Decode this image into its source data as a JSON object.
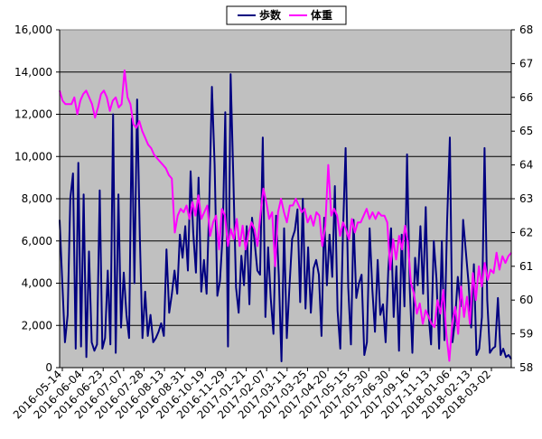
{
  "chart_data": {
    "type": "line",
    "legend": {
      "placement": "top-center",
      "entries": [
        {
          "label": "歩数",
          "color": "#000080"
        },
        {
          "label": "体重",
          "color": "#ff00ff"
        }
      ]
    },
    "plot_background": "#c0c0c0",
    "grid": true,
    "x": {
      "ticks": [
        "2016-05-14",
        "2016-06-04",
        "2016-06-23",
        "2016-07-07",
        "2016-07-28",
        "2016-08-13",
        "2016-08-31",
        "2016-10-19",
        "2016-11-29",
        "2017-01-21",
        "2017-02-07",
        "2017-03-11",
        "2017-03-25",
        "2017-04-20",
        "2017-05-15",
        "2017-05-30",
        "2017-06-30",
        "2017-09-16",
        "2017-11-13",
        "2018-01-06",
        "2018-02-13",
        "2018-03-02"
      ]
    },
    "y_left": {
      "ylim": [
        0,
        16000
      ],
      "ticks": [
        "0",
        "2,000",
        "4,000",
        "6,000",
        "8,000",
        "10,000",
        "12,000",
        "14,000",
        "16,000"
      ]
    },
    "y_right": {
      "ylim": [
        58,
        68
      ],
      "ticks": [
        "58",
        "59",
        "60",
        "61",
        "62",
        "63",
        "64",
        "65",
        "66",
        "67",
        "68"
      ]
    },
    "series": [
      {
        "name": "歩数",
        "axis": "left",
        "color": "#000080",
        "values": [
          7000,
          4000,
          1200,
          2500,
          8000,
          9200,
          900,
          9700,
          1000,
          8200,
          500,
          5500,
          1200,
          800,
          1100,
          8400,
          900,
          1400,
          4600,
          1100,
          12000,
          700,
          8200,
          1900,
          4500,
          2500,
          1400,
          11800,
          4000,
          12700,
          6200,
          1400,
          3600,
          1500,
          2500,
          1200,
          1400,
          1700,
          2100,
          1500,
          5600,
          2600,
          3500,
          4600,
          3500,
          6300,
          5200,
          6700,
          4600,
          9300,
          6400,
          4500,
          9000,
          3600,
          5100,
          3500,
          7800,
          13300,
          9600,
          3400,
          4100,
          6300,
          12100,
          1000,
          13900,
          9000,
          3800,
          2600,
          5300,
          3900,
          6700,
          3000,
          7100,
          5900,
          4600,
          4400,
          10900,
          2400,
          5700,
          3300,
          1600,
          7200,
          4400,
          300,
          6600,
          1400,
          3800,
          6100,
          6500,
          7500,
          3100,
          8000,
          2800,
          5700,
          2600,
          4700,
          5100,
          4400,
          1500,
          7100,
          3900,
          6300,
          4300,
          8600,
          2700,
          900,
          6300,
          10400,
          3800,
          1100,
          7000,
          3300,
          4000,
          4400,
          600,
          1200,
          6600,
          3700,
          1700,
          5100,
          2500,
          3000,
          1200,
          4700,
          6600,
          2400,
          4800,
          800,
          6300,
          2900,
          10100,
          3800,
          700,
          5200,
          3900,
          6700,
          3500,
          7600,
          2600,
          1100,
          6000,
          4200,
          900,
          6000,
          1300,
          7000,
          10900,
          1200,
          2300,
          4300,
          2900,
          7000,
          5500,
          4000,
          1900,
          4900,
          600,
          900,
          2400,
          10400,
          3200,
          700,
          900,
          1000,
          3300,
          600,
          900,
          500,
          600,
          400
        ]
      },
      {
        "name": "体重",
        "axis": "right",
        "color": "#ff00ff",
        "values": [
          66.2,
          65.9,
          65.8,
          65.8,
          65.8,
          66.0,
          65.5,
          65.9,
          66.1,
          66.2,
          66.0,
          65.8,
          65.4,
          65.7,
          66.1,
          66.2,
          66.0,
          65.6,
          65.9,
          66.0,
          65.7,
          65.8,
          66.8,
          66.0,
          65.8,
          65.2,
          65.1,
          65.3,
          65.0,
          64.8,
          64.6,
          64.5,
          64.3,
          64.2,
          64.1,
          64.0,
          63.9,
          63.7,
          63.6,
          62.0,
          62.5,
          62.7,
          62.6,
          62.8,
          62.4,
          62.9,
          62.5,
          63.1,
          62.4,
          62.6,
          62.8,
          61.9,
          62.3,
          62.5,
          61.5,
          62.7,
          62.5,
          61.6,
          62.1,
          61.8,
          62.4,
          61.6,
          62.2,
          61.5,
          62.0,
          62.3,
          62.1,
          61.6,
          62.5,
          63.3,
          62.9,
          62.4,
          62.6,
          61.0,
          62.6,
          63.0,
          62.6,
          62.3,
          62.8,
          62.8,
          63.0,
          62.8,
          62.6,
          62.7,
          62.3,
          62.5,
          62.2,
          62.6,
          62.5,
          61.6,
          62.2,
          64.0,
          62.5,
          62.7,
          62.5,
          61.9,
          62.3,
          62.1,
          61.8,
          62.4,
          62.0,
          62.3,
          62.3,
          62.5,
          62.7,
          62.4,
          62.6,
          62.4,
          62.6,
          62.5,
          62.5,
          62.3,
          60.9,
          61.8,
          61.2,
          61.9,
          61.5,
          62.2,
          61.7,
          60.5,
          60.2,
          59.6,
          59.9,
          59.3,
          59.7,
          59.5,
          59.3,
          59.2,
          60.0,
          59.6,
          60.3,
          59.0,
          58.2,
          59.3,
          59.8,
          59.0,
          60.4,
          59.5,
          60.1,
          59.3,
          60.8,
          60.0,
          61.0,
          60.4,
          61.1,
          60.6,
          60.9,
          60.8,
          61.4,
          60.9,
          61.3,
          61.1,
          61.3,
          61.4
        ]
      }
    ]
  }
}
